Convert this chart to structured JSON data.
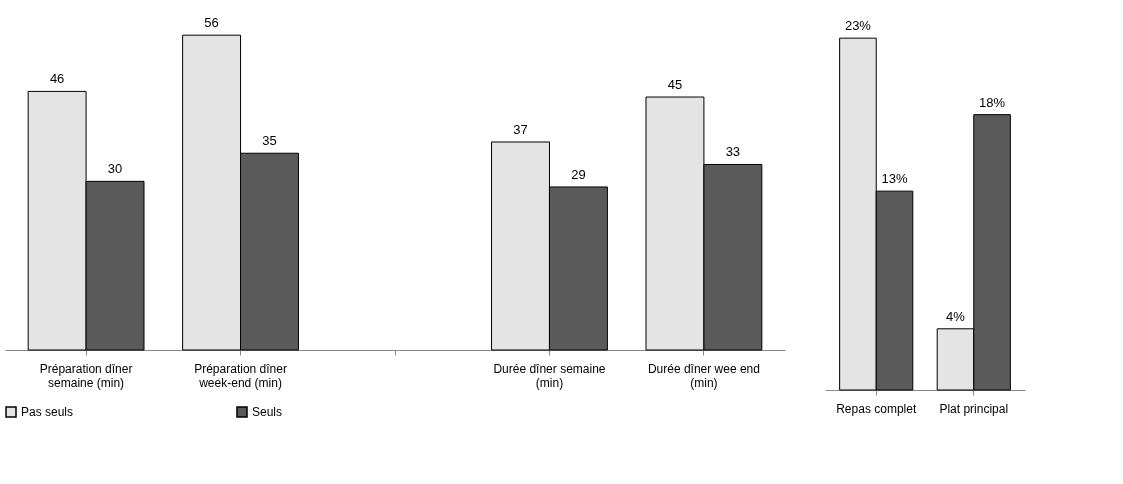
{
  "chart_data": [
    {
      "type": "bar",
      "categories": [
        "Préparation dîner semaine (min)",
        "Préparation dîner week-end (min)",
        null,
        "Durée dîner semaine (min)",
        "Durée dîner wee end (min)"
      ],
      "series": [
        {
          "name": "Pas seuls",
          "color": "#e4e4e4",
          "values": [
            46,
            56,
            null,
            37,
            45
          ]
        },
        {
          "name": "Seuls",
          "color": "#5a5a5a",
          "values": [
            30,
            35,
            null,
            29,
            33
          ]
        }
      ],
      "data_labels": true,
      "legend": "bottom",
      "grid": false
    },
    {
      "type": "bar",
      "categories": [
        "Repas complet",
        "Plat principal"
      ],
      "series": [
        {
          "color": "#e4e4e4",
          "values": [
            23,
            4
          ],
          "value_labels": [
            "23%",
            "4%"
          ]
        },
        {
          "color": "#5a5a5a",
          "values": [
            13,
            18
          ],
          "value_labels": [
            "13%",
            "18%"
          ]
        }
      ],
      "legend": false,
      "grid": false
    }
  ]
}
